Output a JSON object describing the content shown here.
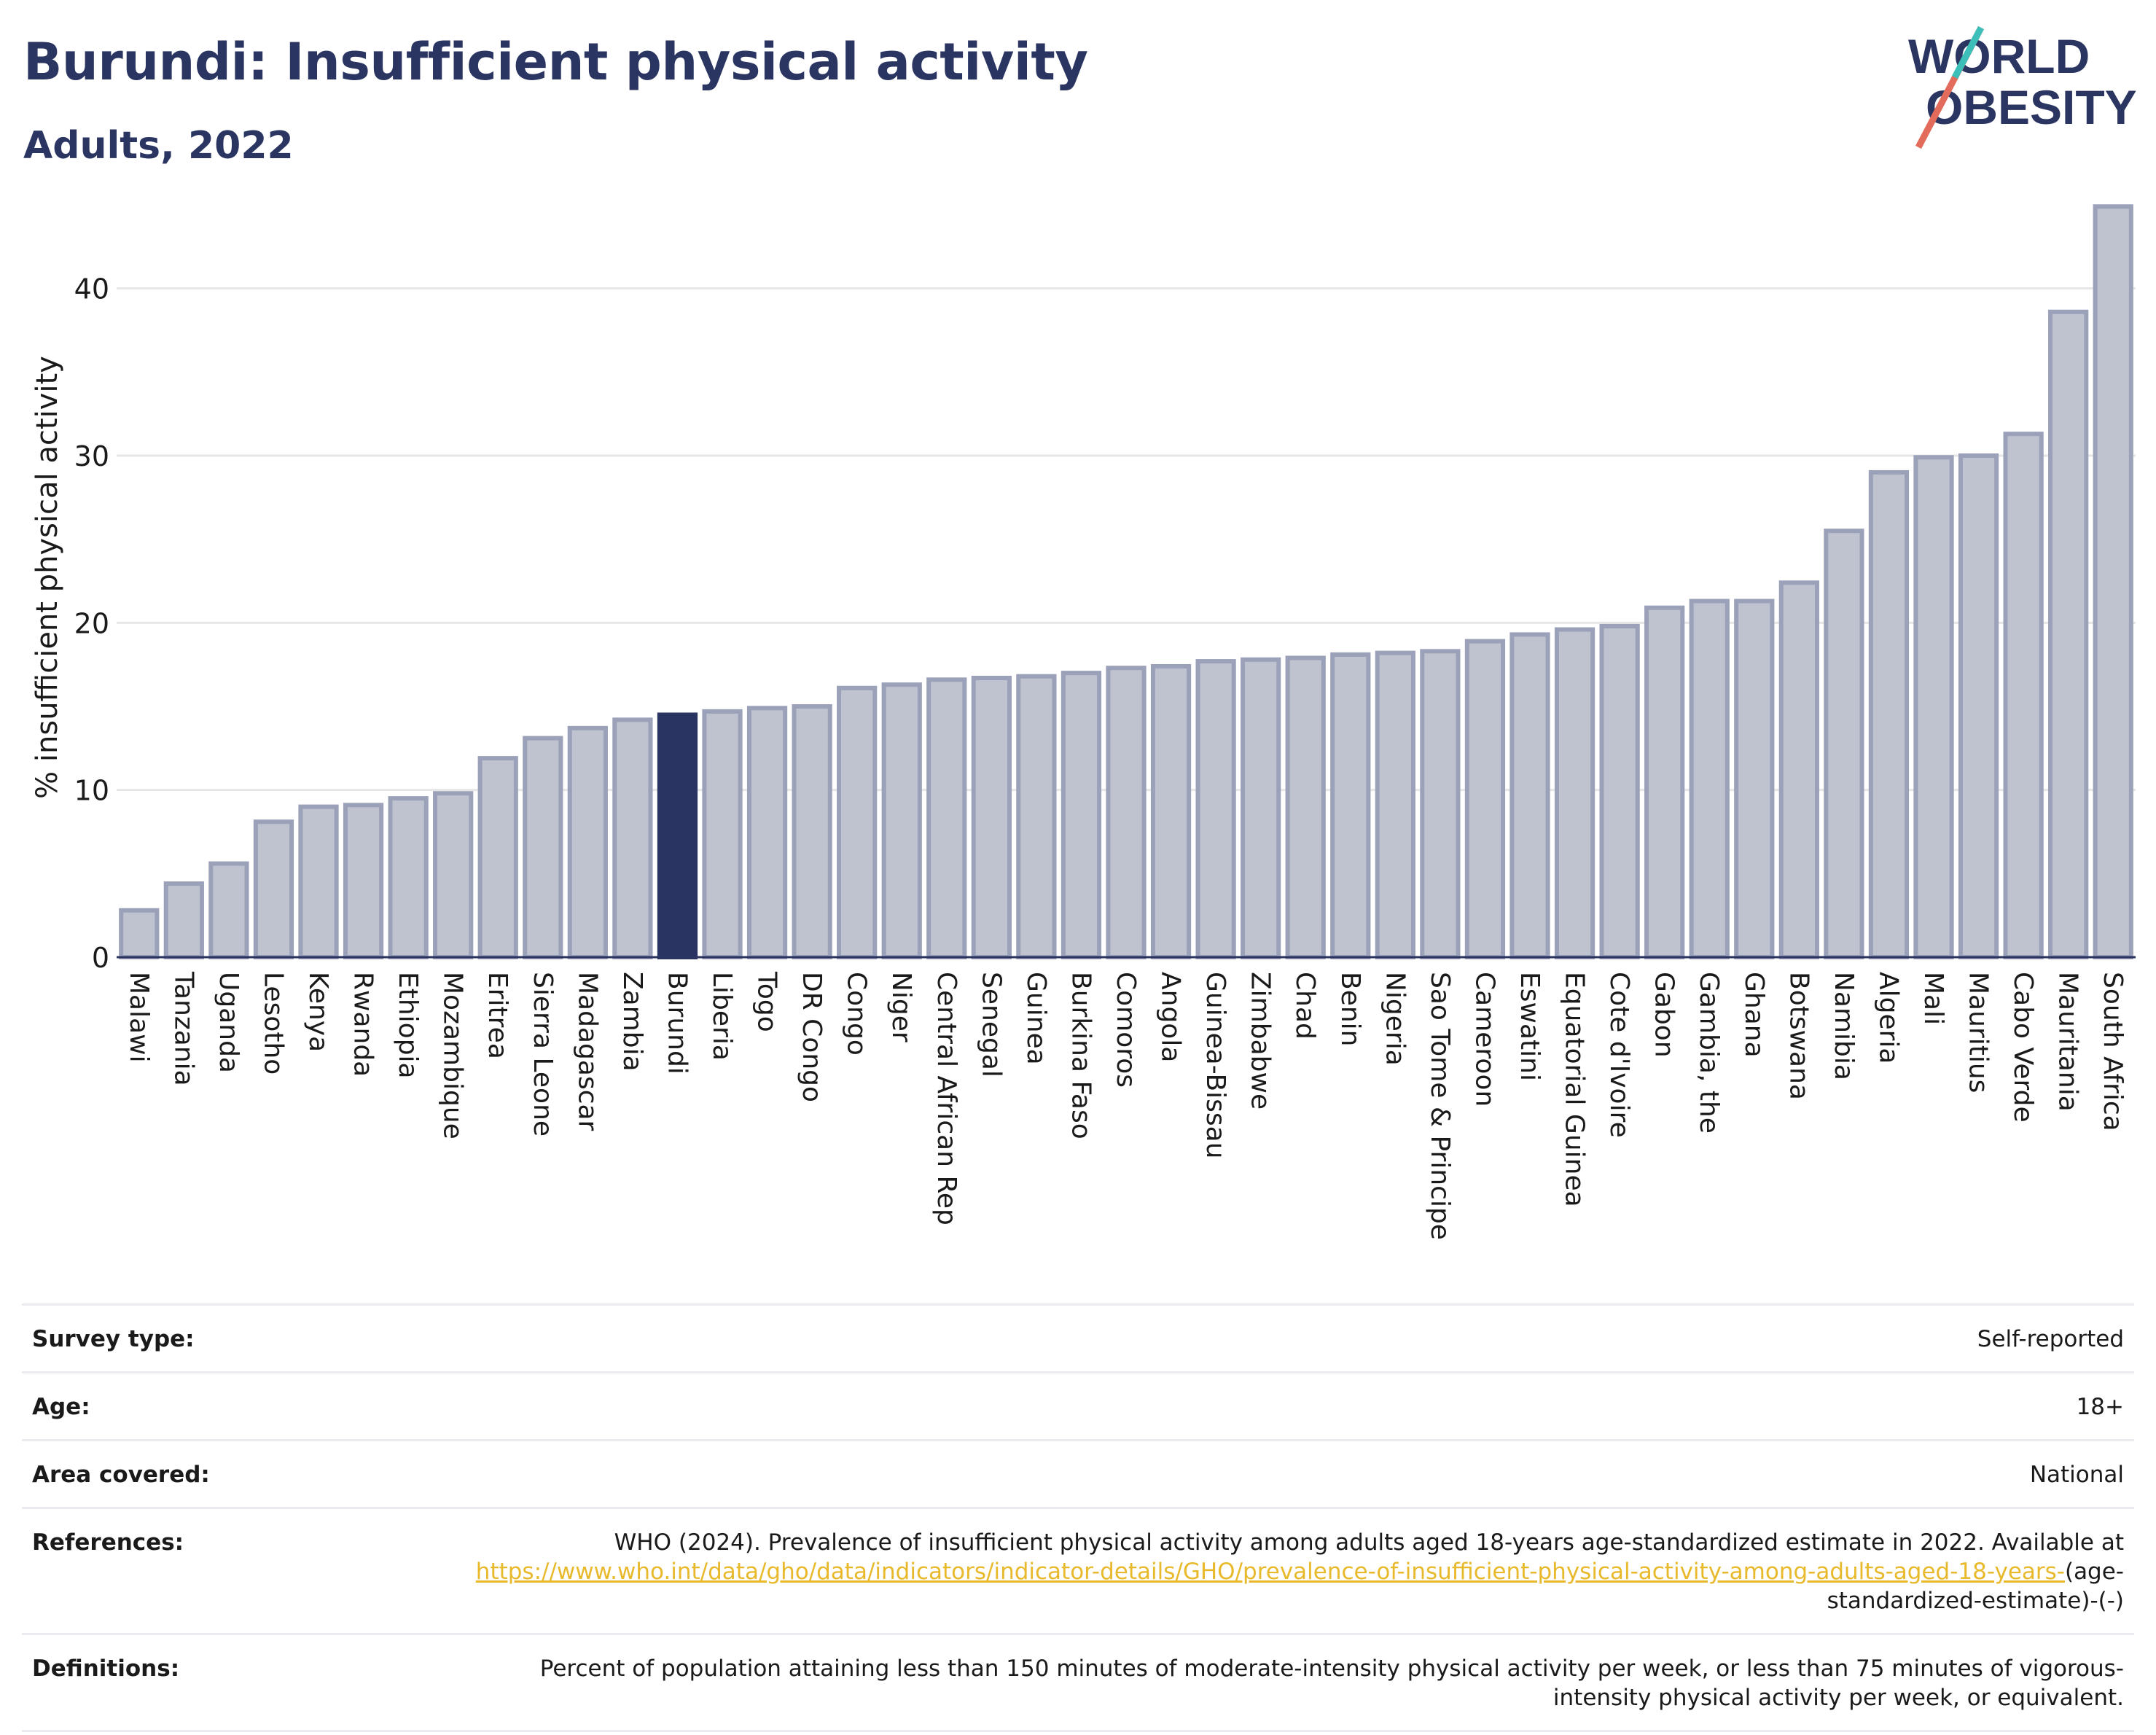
{
  "header": {
    "title": "Burundi: Insufficient physical activity",
    "subtitle": "Adults, 2022"
  },
  "logo": {
    "line1": "WORLD",
    "line2": "OBESITY"
  },
  "chart_data": {
    "type": "bar",
    "ylabel": "% insufficient physical activity",
    "ylim": [
      0,
      45
    ],
    "yticks": [
      0,
      10,
      20,
      30,
      40
    ],
    "grid": true,
    "highlight": "Burundi",
    "colors": {
      "bar": "#bfc3d0",
      "bar_edge": "#9aa1b8",
      "highlight": "#293462",
      "grid": "#e6e6e6",
      "axis": "#2b3562"
    },
    "categories": [
      "Malawi",
      "Tanzania",
      "Uganda",
      "Lesotho",
      "Kenya",
      "Rwanda",
      "Ethiopia",
      "Mozambique",
      "Eritrea",
      "Sierra Leone",
      "Madagascar",
      "Zambia",
      "Burundi",
      "Liberia",
      "Togo",
      "DR Congo",
      "Congo",
      "Niger",
      "Central African Rep",
      "Senegal",
      "Guinea",
      "Burkina Faso",
      "Comoros",
      "Angola",
      "Guinea-Bissau",
      "Zimbabwe",
      "Chad",
      "Benin",
      "Nigeria",
      "Sao Tome & Principe",
      "Cameroon",
      "Eswatini",
      "Equatorial Guinea",
      "Cote d'Ivoire",
      "Gabon",
      "Gambia, the",
      "Ghana",
      "Botswana",
      "Namibia",
      "Algeria",
      "Mali",
      "Mauritius",
      "Cabo Verde",
      "Mauritania",
      "South Africa"
    ],
    "values": [
      2.8,
      4.4,
      5.6,
      8.1,
      9.0,
      9.1,
      9.5,
      9.8,
      11.9,
      13.1,
      13.7,
      14.2,
      14.5,
      14.7,
      14.9,
      15.0,
      16.1,
      16.3,
      16.6,
      16.7,
      16.8,
      17.0,
      17.3,
      17.4,
      17.7,
      17.8,
      17.9,
      18.1,
      18.2,
      18.3,
      18.9,
      19.3,
      19.6,
      19.8,
      20.9,
      21.3,
      21.3,
      22.4,
      25.5,
      29.0,
      29.9,
      30.0,
      31.3,
      38.6,
      44.9
    ]
  },
  "meta": {
    "survey_type_label": "Survey type:",
    "survey_type_value": "Self-reported",
    "age_label": "Age:",
    "age_value": "18+",
    "area_label": "Area covered:",
    "area_value": "National",
    "references_label": "References:",
    "references_text": "WHO (2024). Prevalence of insufficient physical activity among adults aged 18-years age-standardized estimate in 2022. Available at",
    "references_link": "https://www.who.int/data/gho/data/indicators/indicator-details/GHO/prevalence-of-insufficient-physical-activity-among-adults-aged-18-years-",
    "references_suffix": "(age-standardized-estimate)-(-)",
    "definitions_label": "Definitions:",
    "definitions_text": "Percent of population attaining less than 150 minutes of moderate-intensity physical activity per week, or less than 75 minutes of vigorous-intensity physical activity per week, or equivalent."
  }
}
